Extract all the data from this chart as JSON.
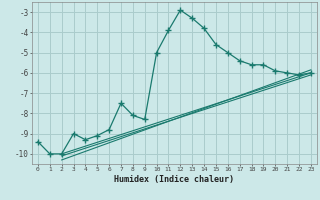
{
  "xlabel": "Humidex (Indice chaleur)",
  "bg_color": "#cce8e8",
  "grid_color": "#aacccc",
  "line_color": "#1a7a6e",
  "xlim": [
    -0.5,
    23.5
  ],
  "ylim": [
    -10.5,
    -2.5
  ],
  "yticks": [
    -10,
    -9,
    -8,
    -7,
    -6,
    -5,
    -4,
    -3
  ],
  "xticks": [
    0,
    1,
    2,
    3,
    4,
    5,
    6,
    7,
    8,
    9,
    10,
    11,
    12,
    13,
    14,
    15,
    16,
    17,
    18,
    19,
    20,
    21,
    22,
    23
  ],
  "series1_x": [
    0,
    1,
    2,
    3,
    4,
    5,
    6,
    7,
    8,
    9,
    10,
    11,
    12,
    13,
    14,
    15,
    16,
    17,
    18,
    19,
    20,
    21,
    22,
    23
  ],
  "series1_y": [
    -9.4,
    -10.0,
    -10.0,
    -9.0,
    -9.3,
    -9.1,
    -8.8,
    -7.5,
    -8.1,
    -8.3,
    -5.0,
    -3.9,
    -2.9,
    -3.3,
    -3.8,
    -4.6,
    -5.0,
    -5.4,
    -5.6,
    -5.6,
    -5.9,
    -6.0,
    -6.1,
    -6.0
  ],
  "series2_x": [
    2,
    23
  ],
  "series2_y": [
    -10.0,
    -6.0
  ],
  "series3_x": [
    2,
    23
  ],
  "series3_y": [
    -10.1,
    -6.1
  ],
  "series4_x": [
    2,
    23
  ],
  "series4_y": [
    -10.3,
    -5.85
  ]
}
